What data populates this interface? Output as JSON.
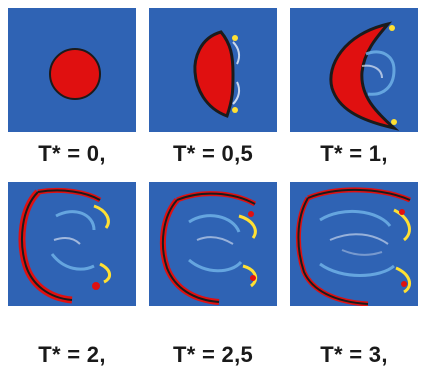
{
  "panels": [
    {
      "icon": "droplet-sphere",
      "caption": "T* = 0,"
    },
    {
      "icon": "droplet-deforming",
      "caption": "T* = 0,5"
    },
    {
      "icon": "droplet-crescent",
      "caption": "T* = 1,"
    },
    {
      "icon": "droplet-breakup",
      "caption": "T* = 2,"
    },
    {
      "icon": "droplet-breakup",
      "caption": "T* = 2,5"
    },
    {
      "icon": "droplet-breakup",
      "caption": "T* = 3,"
    }
  ],
  "colors": {
    "background": "#2f63b4",
    "droplet": "#e01010",
    "outline": "#1b1b1b",
    "vortex": "#6fb0e6",
    "accent": "#ffe033"
  }
}
